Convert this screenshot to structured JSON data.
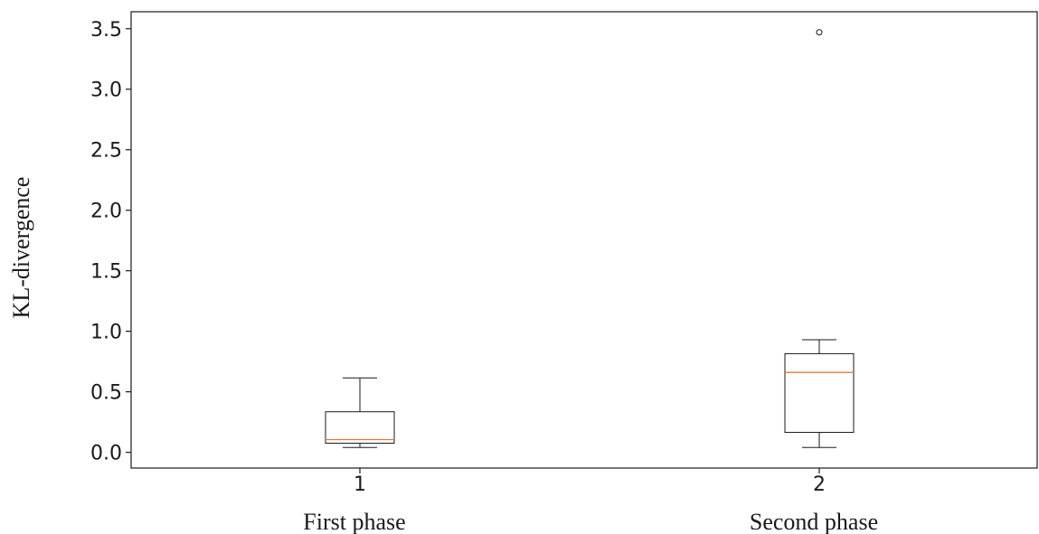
{
  "chart_data": {
    "type": "box",
    "title": "",
    "ylabel": "KL-divergence",
    "xlabel": "",
    "ylim": [
      -0.13,
      3.64
    ],
    "yticks": [
      "0.0",
      "0.5",
      "1.0",
      "1.5",
      "2.0",
      "2.5",
      "3.0",
      "3.5"
    ],
    "yticks_values": [
      0.0,
      0.5,
      1.0,
      1.5,
      2.0,
      2.5,
      3.0,
      3.5
    ],
    "xticks": [
      "1",
      "2"
    ],
    "categories": [
      "First phase",
      "Second phase"
    ],
    "boxes": [
      {
        "whisker_low": 0.04,
        "q1": 0.075,
        "median": 0.105,
        "q3": 0.335,
        "whisker_high": 0.615,
        "outliers": []
      },
      {
        "whisker_low": 0.04,
        "q1": 0.165,
        "median": 0.66,
        "q3": 0.815,
        "whisker_high": 0.93,
        "outliers": [
          3.47
        ]
      }
    ],
    "grid": false,
    "median_color": "#e07b39",
    "box_color": "#1a1a1a"
  }
}
